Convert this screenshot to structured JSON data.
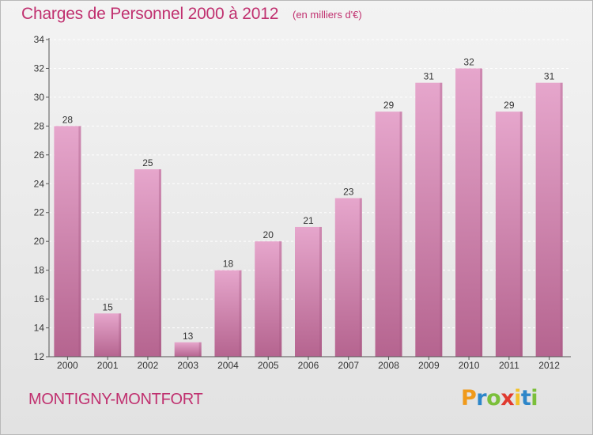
{
  "header": {
    "title": "Charges de Personnel 2000 à 2012",
    "subtitle": "(en milliers d'€)"
  },
  "footer": {
    "commune": "MONTIGNY-MONTFORT",
    "logo_letters": [
      "P",
      "r",
      "o",
      "x",
      "i",
      "t",
      "i"
    ],
    "logo_colors": [
      "#f09a1b",
      "#2d86c9",
      "#7bbf3a",
      "#e03a2f",
      "#f3c22a",
      "#2d86c9",
      "#7bbf3a"
    ]
  },
  "colors": {
    "title": "#c0306f",
    "bar_top": "#e6a6cc",
    "bar_bottom": "#b5648f",
    "label": "#333333"
  },
  "chart_data": {
    "type": "bar",
    "categories": [
      "2000",
      "2001",
      "2002",
      "2003",
      "2004",
      "2005",
      "2006",
      "2007",
      "2008",
      "2009",
      "2010",
      "2011",
      "2012"
    ],
    "values": [
      28,
      15,
      25,
      13,
      18,
      20,
      21,
      23,
      29,
      31,
      32,
      29,
      31
    ],
    "value_labels": [
      "28",
      "15",
      "25",
      "13",
      "18",
      "20",
      "21",
      "23",
      "29",
      "31",
      "32",
      "29",
      "31"
    ],
    "title": "Charges de Personnel 2000 à 2012",
    "subtitle": "(en milliers d'€)",
    "ylim": [
      12,
      34
    ],
    "yticks": [
      12,
      14,
      16,
      18,
      20,
      22,
      24,
      26,
      28,
      30,
      32,
      34
    ],
    "ytick_labels": [
      "12",
      "14",
      "16",
      "18",
      "20",
      "22",
      "24",
      "26",
      "28",
      "30",
      "32",
      "34"
    ],
    "grid": true,
    "legend": "none"
  }
}
